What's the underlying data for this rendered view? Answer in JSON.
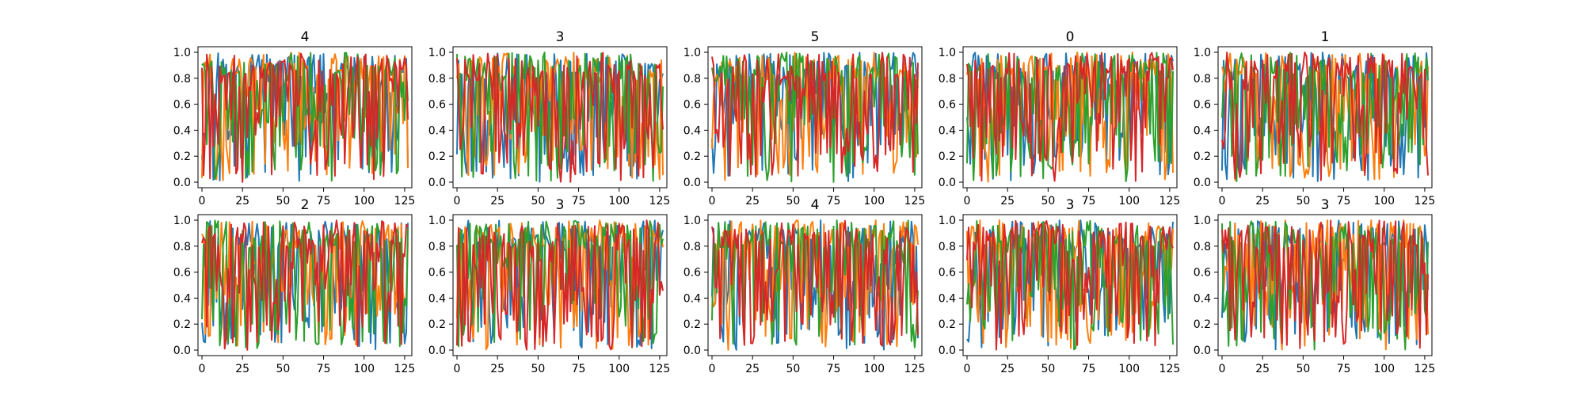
{
  "figure": {
    "panel_rows": 2,
    "panel_cols": 5,
    "line_colors": [
      "#1f77b4",
      "#ff7f0e",
      "#2ca02c",
      "#d62728"
    ]
  },
  "chart_data": [
    {
      "type": "line",
      "title": "4",
      "xlim": [
        0,
        127
      ],
      "ylim": [
        0.0,
        1.0
      ],
      "xticks": [
        0,
        25,
        50,
        75,
        100,
        125
      ],
      "yticks": [
        0.0,
        0.2,
        0.4,
        0.6,
        0.8,
        1.0
      ],
      "x_range": [
        0,
        127
      ],
      "series_count": 4,
      "seed": 11,
      "y_min_visible": 0.0,
      "y_max_visible": 1.0
    },
    {
      "type": "line",
      "title": "3",
      "xlim": [
        0,
        127
      ],
      "ylim": [
        0.0,
        1.0
      ],
      "xticks": [
        0,
        25,
        50,
        75,
        100,
        125
      ],
      "yticks": [
        0.0,
        0.2,
        0.4,
        0.6,
        0.8,
        1.0
      ],
      "x_range": [
        0,
        127
      ],
      "series_count": 4,
      "seed": 23,
      "y_min_visible": 0.0,
      "y_max_visible": 1.0
    },
    {
      "type": "line",
      "title": "5",
      "xlim": [
        0,
        127
      ],
      "ylim": [
        0.0,
        1.0
      ],
      "xticks": [
        0,
        25,
        50,
        75,
        100,
        125
      ],
      "yticks": [
        0.0,
        0.2,
        0.4,
        0.6,
        0.8,
        1.0
      ],
      "x_range": [
        0,
        127
      ],
      "series_count": 4,
      "seed": 37,
      "y_min_visible": 0.0,
      "y_max_visible": 1.0
    },
    {
      "type": "line",
      "title": "0",
      "xlim": [
        0,
        127
      ],
      "ylim": [
        0.0,
        1.0
      ],
      "xticks": [
        0,
        25,
        50,
        75,
        100,
        125
      ],
      "yticks": [
        0.0,
        0.2,
        0.4,
        0.6,
        0.8,
        1.0
      ],
      "x_range": [
        0,
        127
      ],
      "series_count": 4,
      "seed": 41,
      "y_min_visible": 0.0,
      "y_max_visible": 1.0
    },
    {
      "type": "line",
      "title": "1",
      "xlim": [
        0,
        127
      ],
      "ylim": [
        0.0,
        1.0
      ],
      "xticks": [
        0,
        25,
        50,
        75,
        100,
        125
      ],
      "yticks": [
        0.0,
        0.2,
        0.4,
        0.6,
        0.8,
        1.0
      ],
      "x_range": [
        0,
        127
      ],
      "series_count": 4,
      "seed": 53,
      "y_min_visible": 0.0,
      "y_max_visible": 1.0
    },
    {
      "type": "line",
      "title": "2",
      "xlim": [
        0,
        127
      ],
      "ylim": [
        0.0,
        1.0
      ],
      "xticks": [
        0,
        25,
        50,
        75,
        100,
        125
      ],
      "yticks": [
        0.0,
        0.2,
        0.4,
        0.6,
        0.8,
        1.0
      ],
      "x_range": [
        0,
        127
      ],
      "series_count": 4,
      "seed": 67,
      "y_min_visible": 0.0,
      "y_max_visible": 1.0
    },
    {
      "type": "line",
      "title": "3",
      "xlim": [
        0,
        127
      ],
      "ylim": [
        0.0,
        1.0
      ],
      "xticks": [
        0,
        25,
        50,
        75,
        100,
        125
      ],
      "yticks": [
        0.0,
        0.2,
        0.4,
        0.6,
        0.8,
        1.0
      ],
      "x_range": [
        0,
        127
      ],
      "series_count": 4,
      "seed": 71,
      "y_min_visible": 0.0,
      "y_max_visible": 1.0
    },
    {
      "type": "line",
      "title": "4",
      "xlim": [
        0,
        127
      ],
      "ylim": [
        0.0,
        1.0
      ],
      "xticks": [
        0,
        25,
        50,
        75,
        100,
        125
      ],
      "yticks": [
        0.0,
        0.2,
        0.4,
        0.6,
        0.8,
        1.0
      ],
      "x_range": [
        0,
        127
      ],
      "series_count": 4,
      "seed": 83,
      "y_min_visible": 0.0,
      "y_max_visible": 1.0
    },
    {
      "type": "line",
      "title": "3",
      "xlim": [
        0,
        127
      ],
      "ylim": [
        0.0,
        1.0
      ],
      "xticks": [
        0,
        25,
        50,
        75,
        100,
        125
      ],
      "yticks": [
        0.0,
        0.2,
        0.4,
        0.6,
        0.8,
        1.0
      ],
      "x_range": [
        0,
        127
      ],
      "series_count": 4,
      "seed": 97,
      "y_min_visible": 0.0,
      "y_max_visible": 1.0
    },
    {
      "type": "line",
      "title": "3",
      "xlim": [
        0,
        127
      ],
      "ylim": [
        0.0,
        1.0
      ],
      "xticks": [
        0,
        25,
        50,
        75,
        100,
        125
      ],
      "yticks": [
        0.0,
        0.2,
        0.4,
        0.6,
        0.8,
        1.0
      ],
      "x_range": [
        0,
        127
      ],
      "series_count": 4,
      "seed": 101,
      "y_min_visible": 0.0,
      "y_max_visible": 1.0
    }
  ]
}
